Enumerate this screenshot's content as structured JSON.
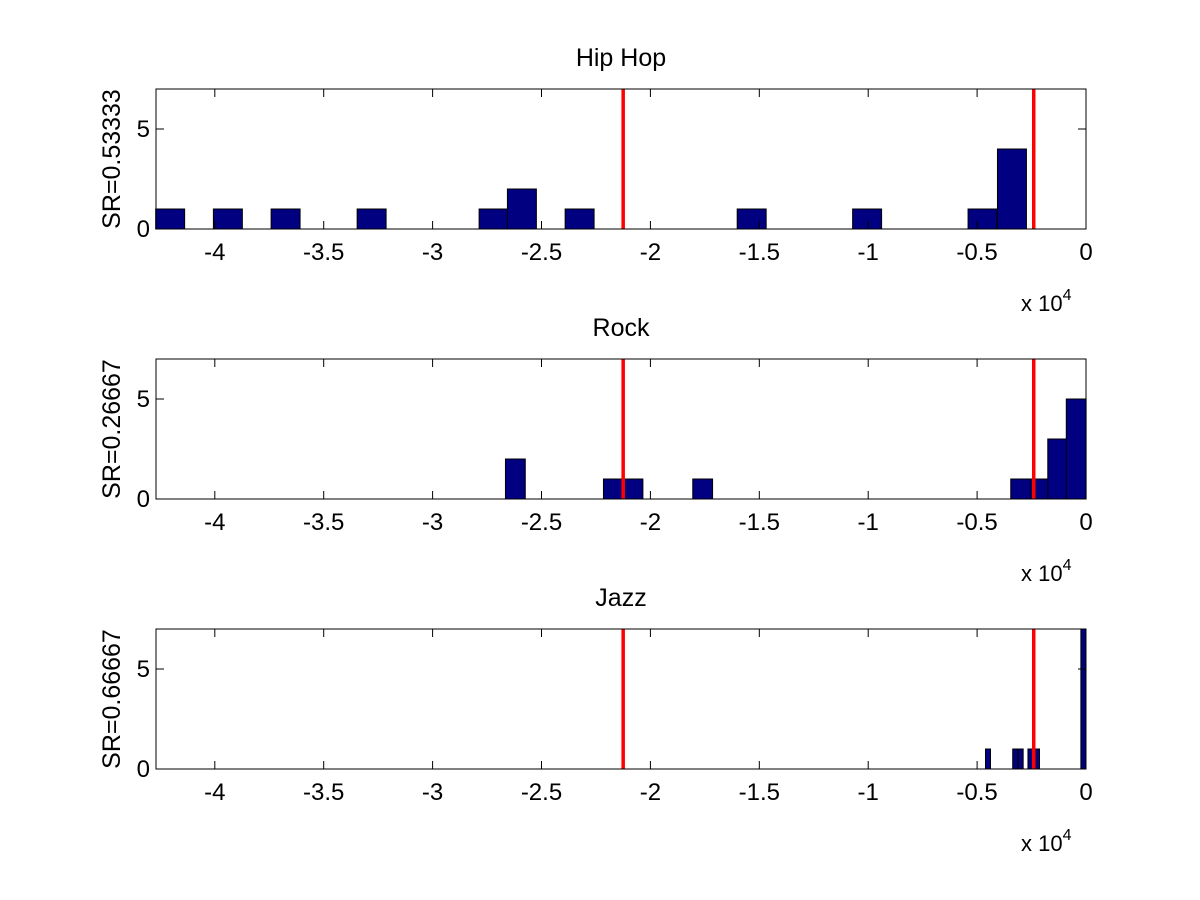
{
  "colors": {
    "bar": "#000080",
    "reference_line": "#ff0000"
  },
  "axis_exponent": {
    "prefix": "x 10",
    "power": "4"
  },
  "chart_data": [
    {
      "type": "bar",
      "title": "Hip Hop",
      "ylabel": "SR=0.53333",
      "xlim": [
        -4.27,
        0
      ],
      "ylim": [
        0,
        7
      ],
      "xticks": [
        -4,
        -3.5,
        -3,
        -2.5,
        -2,
        -1.5,
        -1,
        -0.5,
        0
      ],
      "xtick_labels": [
        "-4",
        "-3.5",
        "-3",
        "-2.5",
        "-2",
        "-1.5",
        "-1",
        "-0.5",
        "0"
      ],
      "yticks": [
        0,
        5
      ],
      "ytick_labels": [
        "0",
        "5"
      ],
      "bin_width": 0.133,
      "bins": [
        {
          "x": -4.205,
          "count": 1
        },
        {
          "x": -3.94,
          "count": 1
        },
        {
          "x": -3.675,
          "count": 1
        },
        {
          "x": -3.28,
          "count": 1
        },
        {
          "x": -2.72,
          "count": 1
        },
        {
          "x": -2.59,
          "count": 2
        },
        {
          "x": -2.325,
          "count": 1
        },
        {
          "x": -1.535,
          "count": 1
        },
        {
          "x": -1.005,
          "count": 1
        },
        {
          "x": -0.475,
          "count": 1
        },
        {
          "x": -0.34,
          "count": 4
        }
      ],
      "reference_lines": [
        -2.125,
        -0.24
      ]
    },
    {
      "type": "bar",
      "title": "Rock",
      "ylabel": "SR=0.26667",
      "xlim": [
        -4.27,
        0
      ],
      "ylim": [
        0,
        7
      ],
      "xticks": [
        -4,
        -3.5,
        -3,
        -2.5,
        -2,
        -1.5,
        -1,
        -0.5,
        0
      ],
      "xtick_labels": [
        "-4",
        "-3.5",
        "-3",
        "-2.5",
        "-2",
        "-1.5",
        "-1",
        "-0.5",
        "0"
      ],
      "yticks": [
        0,
        5
      ],
      "ytick_labels": [
        "0",
        "5"
      ],
      "bin_width": 0.091,
      "bins": [
        {
          "x": -2.62,
          "count": 2
        },
        {
          "x": -2.17,
          "count": 1
        },
        {
          "x": -2.08,
          "count": 1
        },
        {
          "x": -1.76,
          "count": 1
        },
        {
          "x": -0.3,
          "count": 1
        },
        {
          "x": -0.21,
          "count": 1
        },
        {
          "x": -0.13,
          "count": 3
        },
        {
          "x": -0.045,
          "count": 5
        }
      ],
      "reference_lines": [
        -2.125,
        -0.24
      ]
    },
    {
      "type": "bar",
      "title": "Jazz",
      "ylabel": "SR=0.66667",
      "xlim": [
        -4.27,
        0
      ],
      "ylim": [
        0,
        7
      ],
      "xticks": [
        -4,
        -3.5,
        -3,
        -2.5,
        -2,
        -1.5,
        -1,
        -0.5,
        0
      ],
      "xtick_labels": [
        "-4",
        "-3.5",
        "-3",
        "-2.5",
        "-2",
        "-1.5",
        "-1",
        "-0.5",
        "0"
      ],
      "yticks": [
        0,
        5
      ],
      "ytick_labels": [
        "0",
        "5"
      ],
      "bin_width": 0.023,
      "bins": [
        {
          "x": -0.45,
          "count": 1
        },
        {
          "x": -0.325,
          "count": 1
        },
        {
          "x": -0.3,
          "count": 1
        },
        {
          "x": -0.255,
          "count": 1
        },
        {
          "x": -0.225,
          "count": 1
        },
        {
          "x": -0.012,
          "count": 7
        }
      ],
      "reference_lines": [
        -2.125,
        -0.24
      ]
    }
  ]
}
